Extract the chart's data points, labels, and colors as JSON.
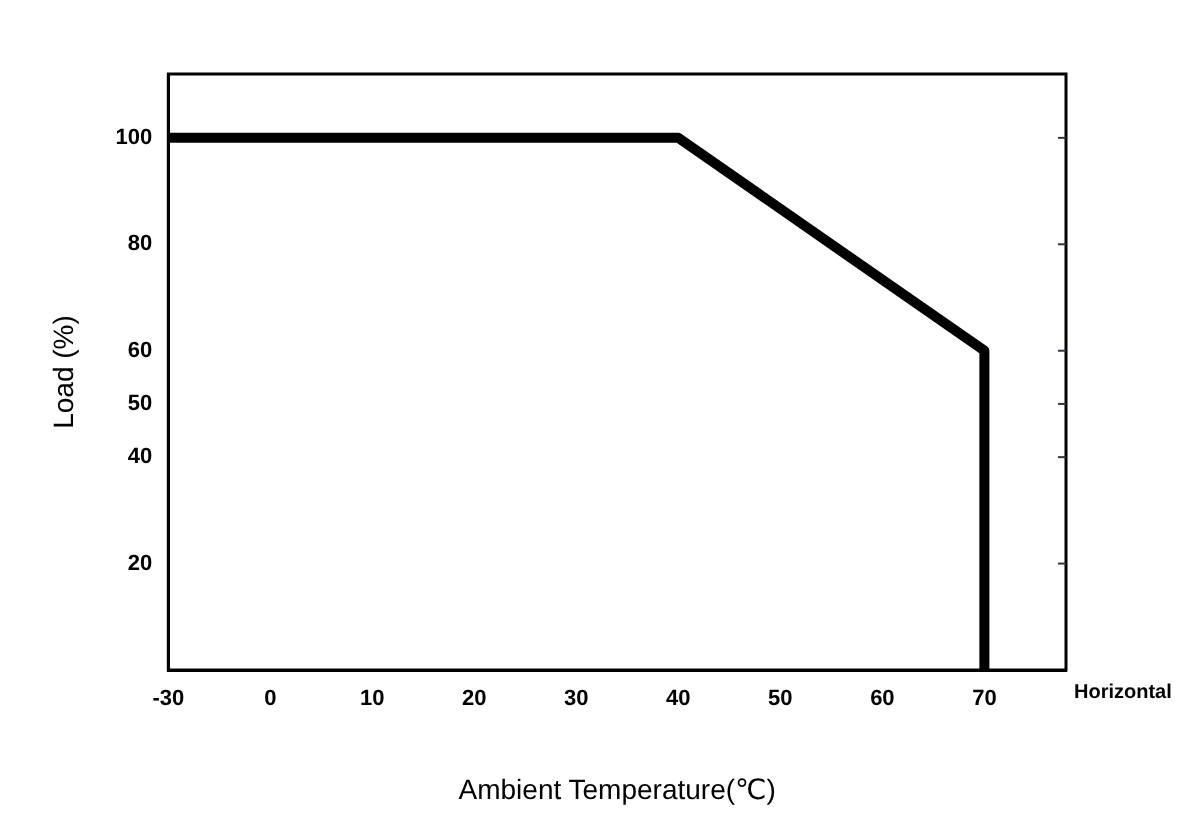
{
  "chart_data": {
    "type": "line",
    "xlabel": "Ambient Temperature(℃)",
    "ylabel": "Load (%)",
    "categories": [
      "-30",
      "0",
      "10",
      "20",
      "30",
      "40",
      "50",
      "60",
      "70"
    ],
    "series": [
      {
        "color": "#000000",
        "x": [
          "-30",
          "40",
          "70",
          "70"
        ],
        "values": [
          100,
          100,
          60,
          0
        ]
      }
    ],
    "ylim": [
      0,
      112
    ],
    "yticks": [
      20,
      40,
      50,
      60,
      80,
      100
    ],
    "grid": false,
    "legend": false,
    "marker": "none",
    "line_style": "solid",
    "annotations": [
      "Horizontal"
    ]
  }
}
